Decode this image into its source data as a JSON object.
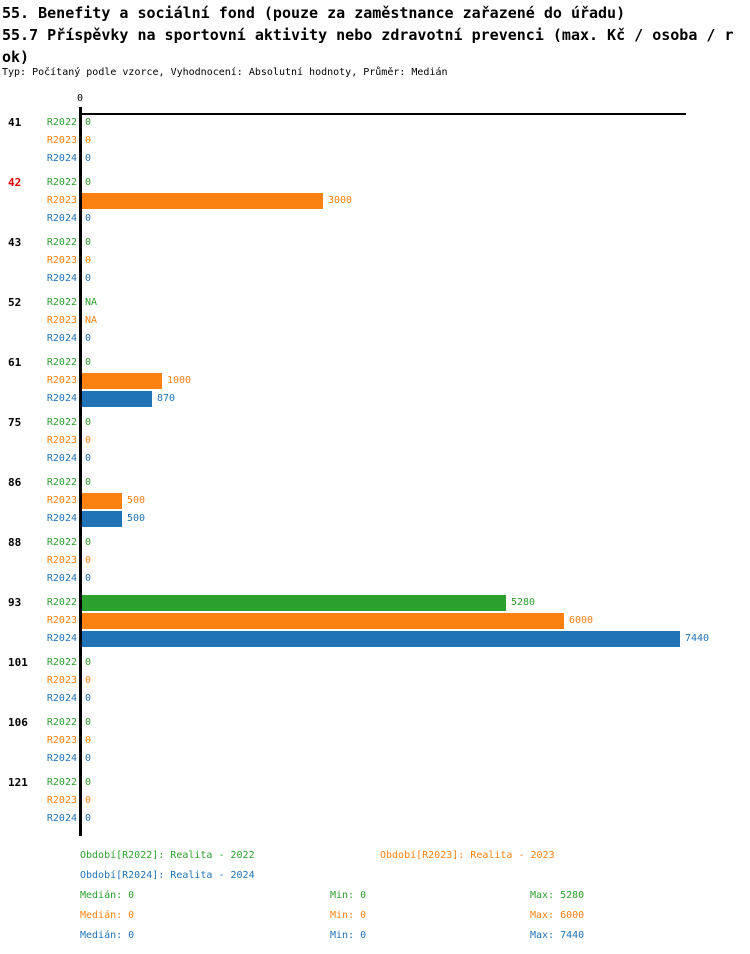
{
  "header": {
    "title_lines": [
      "55. Benefity a sociální fond (pouze za zaměstnance zařazené do úřadu)",
      "55.7 Příspěvky na sportovní aktivity nebo zdravotní prevenci (max. Kč / osoba / r",
      "ok)"
    ],
    "meta": "Typ: Počítaný podle vzorce, Vyhodnocení: Absolutní hodnoty, Průměr: Medián"
  },
  "colors": {
    "R2022": "#2ca02c",
    "R2023": "#fb8111",
    "R2024": "#2074b5",
    "highlight_red": "#dd0000",
    "axis": "#000000",
    "text": "#000000"
  },
  "chart_data": {
    "type": "bar",
    "orientation": "horizontal",
    "title": "55.7 Příspěvky na sportovní aktivity nebo zdravotní prevenci (max. Kč / osoba / rok)",
    "x_axis": {
      "tick_label": "0",
      "xlim": [
        0,
        7500
      ],
      "grid": false
    },
    "series_order": [
      "R2022",
      "R2023",
      "R2024"
    ],
    "max_value": 7440,
    "groups": [
      {
        "id": "41",
        "highlight": false,
        "values": [
          "0",
          "0",
          "0"
        ]
      },
      {
        "id": "42",
        "highlight": true,
        "values": [
          "0",
          "3000",
          "0"
        ]
      },
      {
        "id": "43",
        "highlight": false,
        "values": [
          "0",
          "0",
          "0"
        ]
      },
      {
        "id": "52",
        "highlight": false,
        "values": [
          "NA",
          "NA",
          "0"
        ]
      },
      {
        "id": "61",
        "highlight": false,
        "values": [
          "0",
          "1000",
          "870"
        ]
      },
      {
        "id": "75",
        "highlight": false,
        "values": [
          "0",
          "0",
          "0"
        ]
      },
      {
        "id": "86",
        "highlight": false,
        "values": [
          "0",
          "500",
          "500"
        ]
      },
      {
        "id": "88",
        "highlight": false,
        "values": [
          "0",
          "0",
          "0"
        ]
      },
      {
        "id": "93",
        "highlight": false,
        "values": [
          "5280",
          "6000",
          "7440"
        ]
      },
      {
        "id": "101",
        "highlight": false,
        "values": [
          "0",
          "0",
          "0"
        ]
      },
      {
        "id": "106",
        "highlight": false,
        "values": [
          "0",
          "0",
          "0"
        ]
      },
      {
        "id": "121",
        "highlight": false,
        "values": [
          "0",
          "0",
          "0"
        ]
      }
    ]
  },
  "footer": {
    "legend": [
      {
        "series": "R2022",
        "text": "Období[R2022]: Realita - 2022"
      },
      {
        "series": "R2023",
        "text": "Období[R2023]: Realita - 2023"
      },
      {
        "series": "R2024",
        "text": "Období[R2024]: Realita - 2024"
      }
    ],
    "stats": [
      {
        "series": "R2022",
        "median": "Medián: 0",
        "min": "Min: 0",
        "max": "Max: 5280"
      },
      {
        "series": "R2023",
        "median": "Medián: 0",
        "min": "Min: 0",
        "max": "Max: 6000"
      },
      {
        "series": "R2024",
        "median": "Medián: 0",
        "min": "Min: 0",
        "max": "Max: 7440"
      }
    ]
  }
}
